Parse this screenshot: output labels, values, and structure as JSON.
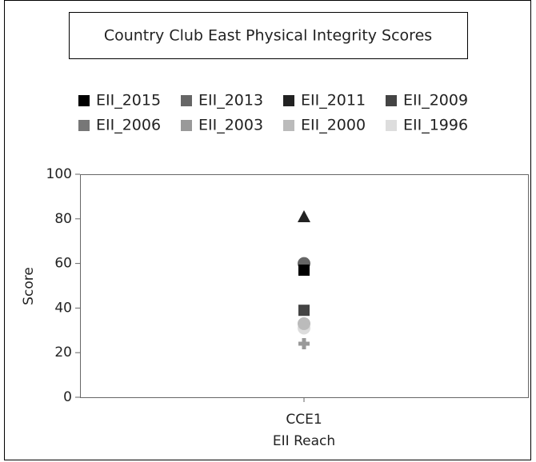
{
  "chart_data": {
    "type": "scatter",
    "title": "Country Club East Physical Integrity Scores",
    "x_label": "EII Reach",
    "y_label": "Score",
    "categories": [
      "CCE1"
    ],
    "ylim": [
      0,
      100
    ],
    "yticks": [
      0,
      20,
      40,
      60,
      80,
      100
    ],
    "grid": false,
    "legend": "top",
    "series": [
      {
        "name": "EII_2015",
        "color": "#000000",
        "marker": "square",
        "values": [
          57
        ]
      },
      {
        "name": "EII_2013",
        "color": "#666666",
        "marker": "circle",
        "values": [
          60
        ]
      },
      {
        "name": "EII_2011",
        "color": "#222222",
        "marker": "triangle",
        "values": [
          81
        ]
      },
      {
        "name": "EII_2009",
        "color": "#444444",
        "marker": "square",
        "values": [
          39
        ]
      },
      {
        "name": "EII_2006",
        "color": "#777777",
        "marker": "diamond",
        "values": [
          null
        ]
      },
      {
        "name": "EII_2003",
        "color": "#999999",
        "marker": "cross",
        "values": [
          24
        ]
      },
      {
        "name": "EII_2000",
        "color": "#bbbbbb",
        "marker": "circle",
        "values": [
          33
        ]
      },
      {
        "name": "EII_1996",
        "color": "#dddddd",
        "marker": "circle",
        "values": [
          31
        ]
      }
    ]
  }
}
